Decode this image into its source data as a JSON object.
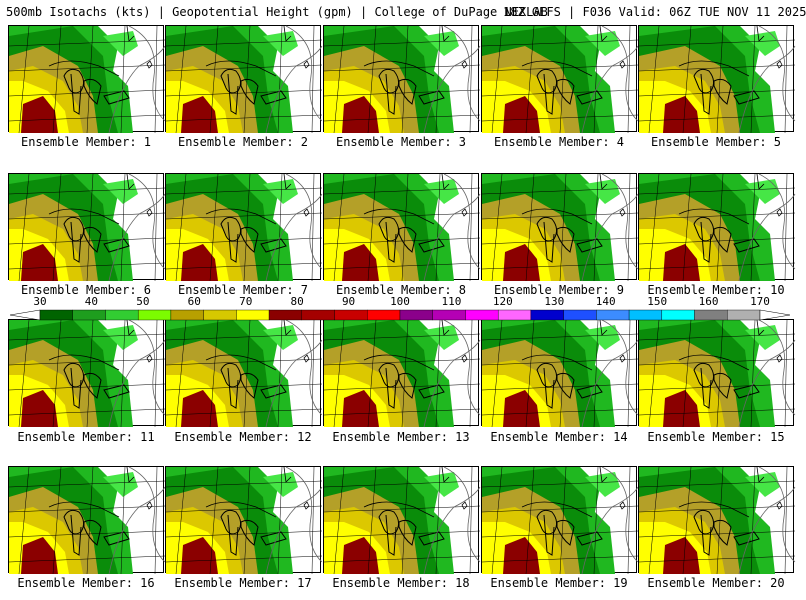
{
  "header": {
    "title": "500mb Isotachs (kts) | Geopotential Height (gpm) | College of DuPage NEXLAB",
    "run": "18Z GEFS | F036 Valid: 06Z TUE NOV 11 2025"
  },
  "members": [
    {
      "label": "Ensemble Member: 1"
    },
    {
      "label": "Ensemble Member: 2"
    },
    {
      "label": "Ensemble Member: 3"
    },
    {
      "label": "Ensemble Member: 4"
    },
    {
      "label": "Ensemble Member: 5"
    },
    {
      "label": "Ensemble Member: 6"
    },
    {
      "label": "Ensemble Member: 7"
    },
    {
      "label": "Ensemble Member: 8"
    },
    {
      "label": "Ensemble Member: 9"
    },
    {
      "label": "Ensemble Member: 10"
    },
    {
      "label": "Ensemble Member: 11"
    },
    {
      "label": "Ensemble Member: 12"
    },
    {
      "label": "Ensemble Member: 13"
    },
    {
      "label": "Ensemble Member: 14"
    },
    {
      "label": "Ensemble Member: 15"
    },
    {
      "label": "Ensemble Member: 16"
    },
    {
      "label": "Ensemble Member: 17"
    },
    {
      "label": "Ensemble Member: 18"
    },
    {
      "label": "Ensemble Member: 19"
    },
    {
      "label": "Ensemble Member: 20"
    }
  ],
  "colorbar": {
    "labels": [
      "30",
      "40",
      "50",
      "60",
      "70",
      "80",
      "90",
      "100",
      "110",
      "120",
      "130",
      "140",
      "150",
      "160",
      "170"
    ],
    "colors": [
      "#006400",
      "#1e9e1e",
      "#32cd32",
      "#7cfc00",
      "#b8a000",
      "#d6c800",
      "#ffff00",
      "#8b0000",
      "#a50000",
      "#c80000",
      "#ff0000",
      "#8b008b",
      "#b400b4",
      "#ff00ff",
      "#ff66ff",
      "#0000cd",
      "#1e50ff",
      "#3c8cff",
      "#00bfff",
      "#00ffff",
      "#808080",
      "#b0b0b0"
    ]
  },
  "palette": {
    "dark_green": "#0a8c0a",
    "green": "#20b820",
    "light_green": "#46e646",
    "olive": "#b4a028",
    "yellow_olive": "#dcc800",
    "yellow": "#ffff00",
    "dark_red": "#8b0000"
  }
}
